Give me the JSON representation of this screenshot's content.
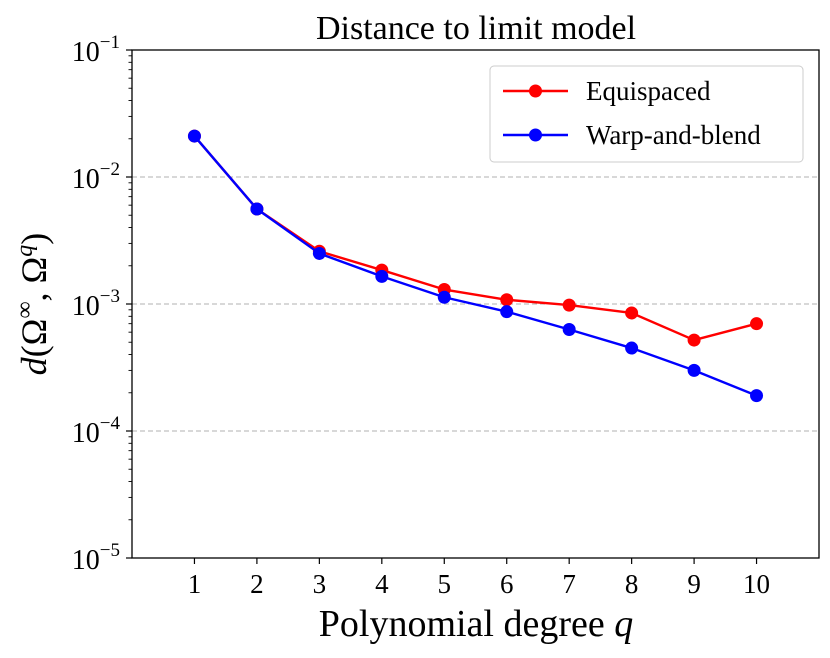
{
  "chart_data": {
    "type": "line",
    "title": "Distance to limit model",
    "xlabel_text": "Polynomial degree ",
    "xlabel_var": "q",
    "ylabel_parts": {
      "d": "d",
      "open": "(",
      "omega": "Ω",
      "inf": "∞",
      "comma": ", ",
      "omega2": "Ω",
      "q": "q",
      "close": ")"
    },
    "x": [
      1,
      2,
      3,
      4,
      5,
      6,
      7,
      8,
      9,
      10
    ],
    "x_ticks": [
      "1",
      "2",
      "3",
      "4",
      "5",
      "6",
      "7",
      "8",
      "9",
      "10"
    ],
    "xlim": [
      0,
      11
    ],
    "yscale": "log",
    "ylim": [
      1e-05,
      0.1
    ],
    "y_ticks": [
      {
        "value": 1e-05,
        "base": "10",
        "exp": "−5"
      },
      {
        "value": 0.0001,
        "base": "10",
        "exp": "−4"
      },
      {
        "value": 0.001,
        "base": "10",
        "exp": "−3"
      },
      {
        "value": 0.01,
        "base": "10",
        "exp": "−2"
      },
      {
        "value": 0.1,
        "base": "10",
        "exp": "−1"
      }
    ],
    "grid": "horizontal dashed",
    "legend_position": "top-right",
    "series": [
      {
        "name": "Equispaced",
        "color": "#ff0000",
        "values": [
          0.021,
          0.0056,
          0.0026,
          0.00185,
          0.0013,
          0.00108,
          0.00098,
          0.00085,
          0.00052,
          0.0007
        ]
      },
      {
        "name": "Warp-and-blend",
        "color": "#0000ff",
        "values": [
          0.021,
          0.0056,
          0.0025,
          0.00165,
          0.00113,
          0.00087,
          0.00063,
          0.00045,
          0.0003,
          0.00019
        ]
      }
    ]
  }
}
